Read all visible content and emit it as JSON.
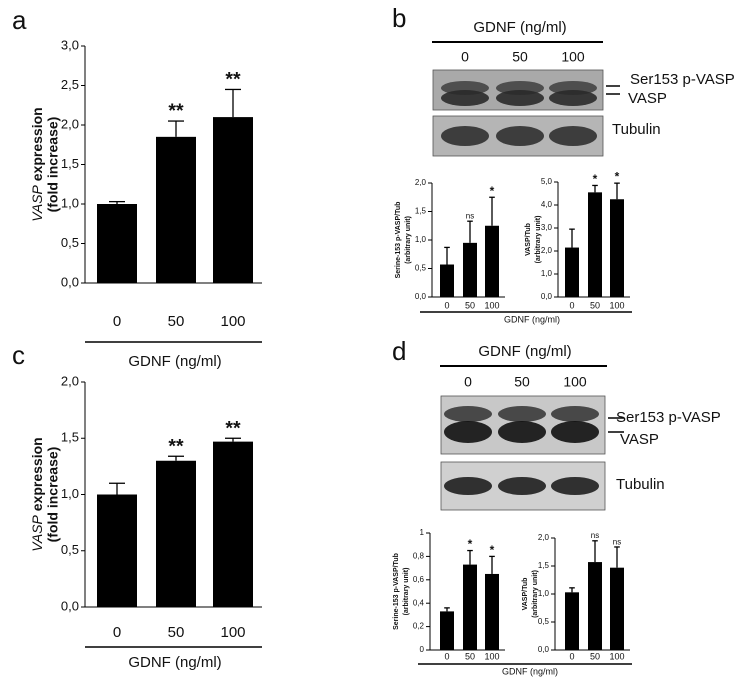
{
  "chart_data": [
    {
      "type": "bar",
      "panel": "a",
      "categories": [
        "0",
        "50",
        "100"
      ],
      "values": [
        1.0,
        1.85,
        2.1
      ],
      "errors": [
        0.03,
        0.2,
        0.35
      ],
      "annotations": [
        null,
        "**",
        "**"
      ],
      "color": "#000000",
      "ylim": [
        0,
        3
      ],
      "yticks": [
        {
          "value": 0,
          "label": "0,0"
        },
        {
          "value": 0.5,
          "label": "0,5"
        },
        {
          "value": 1,
          "label": "1,0"
        },
        {
          "value": 1.5,
          "label": "1,5"
        },
        {
          "value": 2,
          "label": "2,0"
        },
        {
          "value": 2.5,
          "label": "2,5"
        },
        {
          "value": 3,
          "label": "3,0"
        }
      ],
      "ylabel": {
        "italic": "VASP",
        "text": "expression",
        "line2": "(fold increase)"
      },
      "xlabel": "GDNF (ng/ml)"
    },
    {
      "type": "bar",
      "categories": [
        "0",
        "50",
        "100"
      ],
      "values": [
        0.57,
        0.95,
        1.25
      ],
      "errors": [
        0.3,
        0.38,
        0.5
      ],
      "annotations": [
        null,
        "ns",
        "*"
      ],
      "color": "#000000",
      "ylim": [
        0,
        2
      ],
      "yticks": [
        {
          "value": 0,
          "label": "0,0"
        },
        {
          "value": 0.5,
          "label": "0,5"
        },
        {
          "value": 1,
          "label": "1,0"
        },
        {
          "value": 1.5,
          "label": "1,5"
        },
        {
          "value": 2,
          "label": "2,0"
        }
      ],
      "ylabel": {
        "text": "Serine-153 p-VASP/Tub",
        "line2": "(arbitrary unit)"
      },
      "xlabel": "GDNF (ng/ml)"
    },
    {
      "type": "bar",
      "categories": [
        "0",
        "50",
        "100"
      ],
      "values": [
        2.15,
        4.55,
        4.25
      ],
      "errors": [
        0.8,
        0.3,
        0.7
      ],
      "annotations": [
        null,
        "*",
        "*"
      ],
      "color": "#000000",
      "ylim": [
        0,
        5
      ],
      "yticks": [
        {
          "value": 0,
          "label": "0,0"
        },
        {
          "value": 1,
          "label": "1,0"
        },
        {
          "value": 2,
          "label": "2,0"
        },
        {
          "value": 3,
          "label": "3,0"
        },
        {
          "value": 4,
          "label": "4,0"
        },
        {
          "value": 5,
          "label": "5,0"
        }
      ],
      "ylabel": {
        "text": "VASP/Tub",
        "line2": "(arbitrary unit)"
      }
    },
    {
      "type": "bar",
      "panel": "c",
      "categories": [
        "0",
        "50",
        "100"
      ],
      "values": [
        1.0,
        1.3,
        1.47
      ],
      "errors": [
        0.1,
        0.04,
        0.03
      ],
      "annotations": [
        null,
        "**",
        "**"
      ],
      "color": "#000000",
      "ylim": [
        0,
        2
      ],
      "yticks": [
        {
          "value": 0,
          "label": "0,0"
        },
        {
          "value": 0.5,
          "label": "0,5"
        },
        {
          "value": 1,
          "label": "1,0"
        },
        {
          "value": 1.5,
          "label": "1,5"
        },
        {
          "value": 2,
          "label": "2,0"
        }
      ],
      "ylabel": {
        "italic": "VASP",
        "text": "expression",
        "line2": "(fold increase)"
      },
      "xlabel": "GDNF (ng/ml)"
    },
    {
      "type": "bar",
      "categories": [
        "0",
        "50",
        "100"
      ],
      "values": [
        0.33,
        0.73,
        0.65
      ],
      "errors": [
        0.03,
        0.12,
        0.15
      ],
      "annotations": [
        null,
        "*",
        "*"
      ],
      "color": "#000000",
      "ylim": [
        0,
        1
      ],
      "yticks": [
        0,
        {
          "value": 0.2,
          "label": "0,2"
        },
        {
          "value": 0.4,
          "label": "0,4"
        },
        {
          "value": 0.6,
          "label": "0,6"
        },
        {
          "value": 0.8,
          "label": "0,8"
        },
        1
      ],
      "ylabel": {
        "text": "Serine-153 p-VASP/Tub",
        "line2": "(arbitrary unit)"
      },
      "xlabel": "GDNF (ng/ml)"
    },
    {
      "type": "bar",
      "categories": [
        "0",
        "50",
        "100"
      ],
      "values": [
        1.03,
        1.57,
        1.47
      ],
      "errors": [
        0.08,
        0.38,
        0.37
      ],
      "annotations": [
        null,
        "ns",
        "ns"
      ],
      "color": "#000000",
      "ylim": [
        0,
        2
      ],
      "yticks": [
        {
          "value": 0,
          "label": "0,0"
        },
        {
          "value": 0.5,
          "label": "0,5"
        },
        {
          "value": 1,
          "label": "1,0"
        },
        {
          "value": 1.5,
          "label": "1,5"
        },
        {
          "value": 2,
          "label": "2,0"
        }
      ],
      "ylabel": {
        "text": "VASP/Tub",
        "line2": "(arbitrary unit)"
      }
    }
  ],
  "blots": [
    {
      "panel": "b",
      "header": "GDNF (ng/ml)",
      "lanes": [
        "0",
        "50",
        "100"
      ],
      "labels": [
        "Ser153 p-VASP",
        "VASP",
        "Tubulin"
      ]
    },
    {
      "panel": "d",
      "header": "GDNF (ng/ml)",
      "lanes": [
        "0",
        "50",
        "100"
      ],
      "labels": [
        "Ser153 p-VASP",
        "VASP",
        "Tubulin"
      ]
    }
  ]
}
